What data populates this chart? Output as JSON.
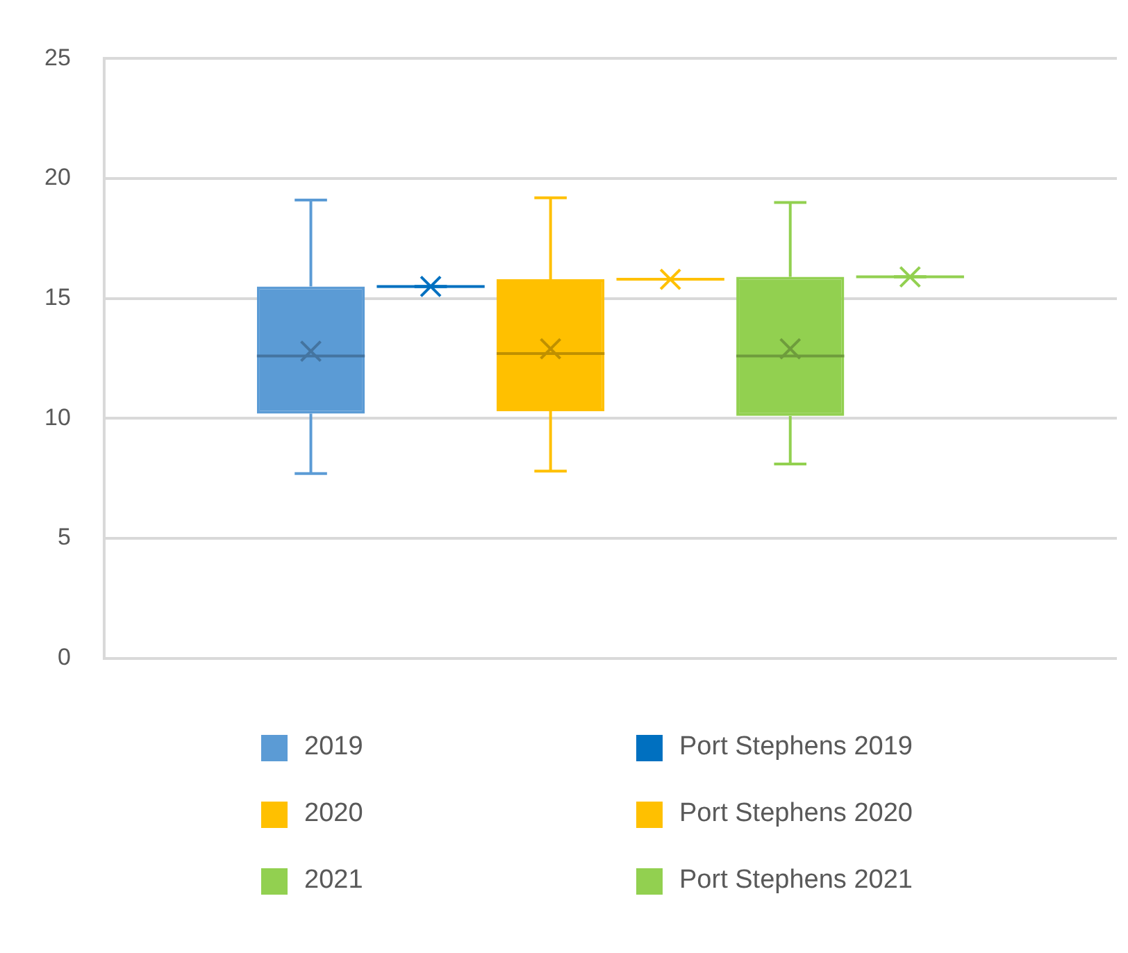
{
  "chart_data": {
    "type": "box",
    "categories": [
      null
    ],
    "ylim": [
      0,
      25
    ],
    "yticks": [
      0,
      5,
      10,
      15,
      20,
      25
    ],
    "grid": "y",
    "legend": "bottom",
    "marker": "cross",
    "series": [
      {
        "name": "2019",
        "color": "#5b9bd5",
        "boxes": [
          {
            "low": 7.7,
            "q1": 10.2,
            "median": 12.6,
            "q3": 15.5,
            "high": 19.1,
            "mean": 12.8
          }
        ]
      },
      {
        "name": "Port Stephens 2019",
        "color": "#0070c0",
        "boxes": [
          {
            "low": 15.5,
            "q1": 15.5,
            "median": 15.5,
            "q3": 15.5,
            "high": 15.5,
            "mean": 15.5
          }
        ]
      },
      {
        "name": "2020",
        "color": "#ffc000",
        "boxes": [
          {
            "low": 7.8,
            "q1": 10.3,
            "median": 12.7,
            "q3": 15.8,
            "high": 19.2,
            "mean": 12.9
          }
        ]
      },
      {
        "name": "Port Stephens 2020",
        "color": "#ffc000",
        "boxes": [
          {
            "low": 15.8,
            "q1": 15.8,
            "median": 15.8,
            "q3": 15.8,
            "high": 15.8,
            "mean": 15.8
          }
        ]
      },
      {
        "name": "2021",
        "color": "#92d050",
        "boxes": [
          {
            "low": 8.1,
            "q1": 10.1,
            "median": 12.6,
            "q3": 15.9,
            "high": 19.0,
            "mean": 12.9
          }
        ]
      },
      {
        "name": "Port Stephens 2021",
        "color": "#92d050",
        "boxes": [
          {
            "low": 15.9,
            "q1": 15.9,
            "median": 15.9,
            "q3": 15.9,
            "high": 15.9,
            "mean": 15.9
          }
        ]
      }
    ]
  }
}
